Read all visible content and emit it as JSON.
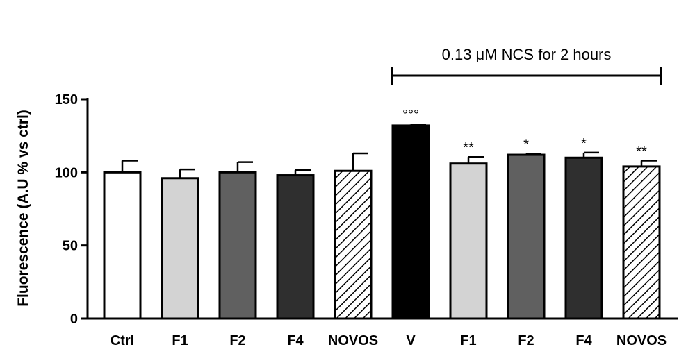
{
  "chart_data": {
    "type": "bar",
    "ylabel": "Fluorescence (A.U % vs ctrl)",
    "xlabel": "",
    "ylim": [
      0,
      150
    ],
    "yticks": [
      0,
      50,
      100,
      150
    ],
    "grid": false,
    "categories": [
      "Ctrl",
      "F1",
      "F2",
      "F4",
      "NOVOS",
      "V",
      "F1",
      "F2",
      "F4",
      "NOVOS"
    ],
    "values": [
      100,
      96,
      100,
      98,
      101,
      132,
      106,
      112,
      110,
      104
    ],
    "errors": [
      8,
      6,
      7,
      3.5,
      12,
      0.8,
      4.5,
      0.8,
      3.5,
      4
    ],
    "fills": [
      "#ffffff",
      "#d3d3d3",
      "#606060",
      "#2f2f2f",
      "hatch",
      "#000000",
      "#d3d3d3",
      "#606060",
      "#2f2f2f",
      "hatch"
    ],
    "significance": [
      "",
      "",
      "",
      "",
      "",
      "°°°",
      "**",
      "*",
      "*",
      "**"
    ],
    "bracket": {
      "label": "0.13 μM NCS for 2 hours",
      "from_index": 5,
      "to_index": 9
    }
  }
}
